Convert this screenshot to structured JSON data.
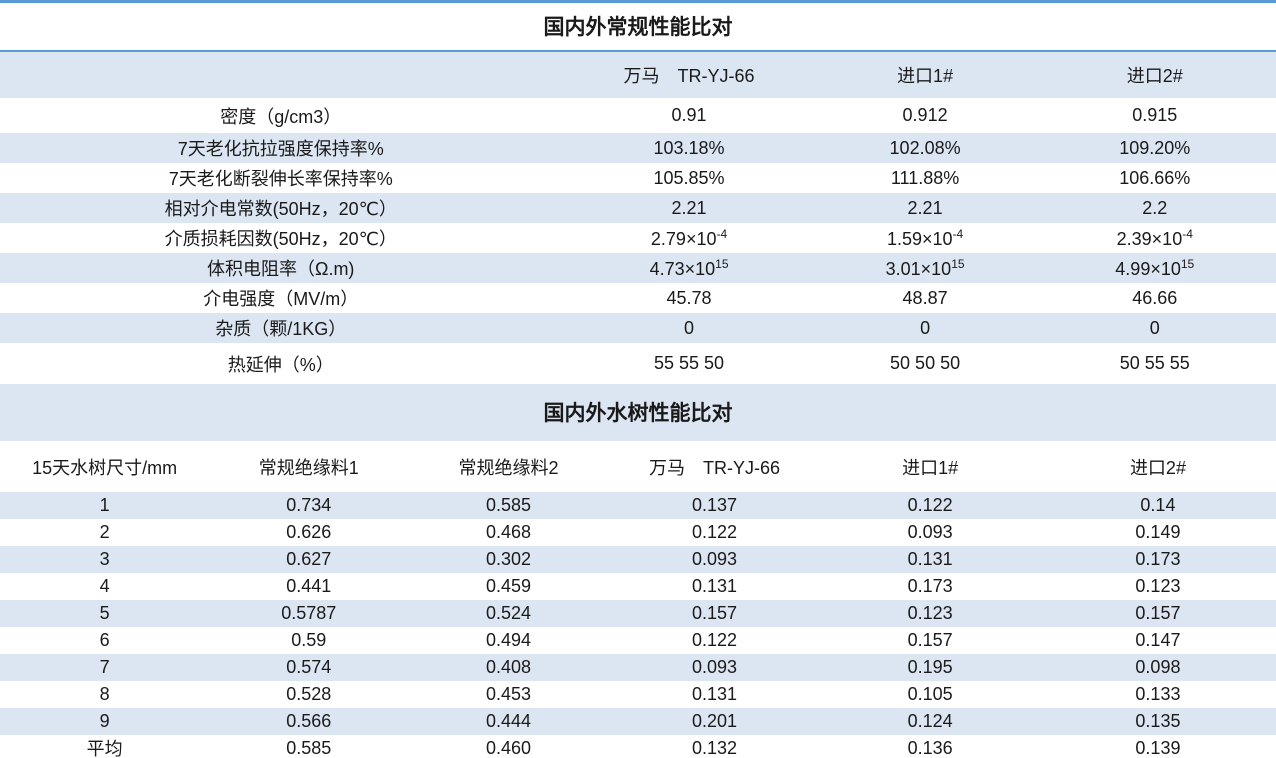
{
  "colors": {
    "stripe": "#dce6f2",
    "border_blue": "#5b9bd5",
    "text": "#1a1a1a",
    "footer_strip": "#ededed"
  },
  "table1": {
    "title": "国内外常规性能比对",
    "header": {
      "empty_label": "",
      "cols": [
        "万马　TR-YJ-66",
        "进口1#",
        "进口2#"
      ]
    },
    "rows": [
      {
        "label": "密度（g/cm3）",
        "values": [
          "0.91",
          "0.912",
          "0.915"
        ]
      },
      {
        "label": "7天老化抗拉强度保持率%",
        "values": [
          "103.18%",
          "102.08%",
          "109.20%"
        ]
      },
      {
        "label": "7天老化断裂伸长率保持率%",
        "values": [
          "105.85%",
          "111.88%",
          "106.66%"
        ]
      },
      {
        "label": "相对介电常数(50Hz，20℃）",
        "values": [
          "2.21",
          "2.21",
          "2.2"
        ]
      },
      {
        "label": "介质损耗因数(50Hz，20℃）",
        "values": [
          "2.79×10^-4",
          "1.59×10^-4",
          "2.39×10^-4"
        ]
      },
      {
        "label": "体积电阻率（Ω.m)",
        "values": [
          "4.73×10^15",
          "3.01×10^15",
          "4.99×10^15"
        ]
      },
      {
        "label": "介电强度（MV/m）",
        "values": [
          "45.78",
          "48.87",
          "46.66"
        ]
      },
      {
        "label": "杂质（颗/1KG）",
        "values": [
          "0",
          "0",
          "0"
        ]
      },
      {
        "label": "热延伸（%）",
        "values": [
          "55 55 50",
          "50 50 50",
          "50 55 55"
        ]
      }
    ]
  },
  "table2": {
    "title": "国内外水树性能比对",
    "header": [
      "15天水树尺寸/mm",
      "常规绝缘料1",
      "常规绝缘料2",
      "万马　TR-YJ-66",
      "进口1#",
      "进口2#"
    ],
    "rows": [
      [
        "1",
        "0.734",
        "0.585",
        "0.137",
        "0.122",
        "0.14"
      ],
      [
        "2",
        "0.626",
        "0.468",
        "0.122",
        "0.093",
        "0.149"
      ],
      [
        "3",
        "0.627",
        "0.302",
        "0.093",
        "0.131",
        "0.173"
      ],
      [
        "4",
        "0.441",
        "0.459",
        "0.131",
        "0.173",
        "0.123"
      ],
      [
        "5",
        "0.5787",
        "0.524",
        "0.157",
        "0.123",
        "0.157"
      ],
      [
        "6",
        "0.59",
        "0.494",
        "0.122",
        "0.157",
        "0.147"
      ],
      [
        "7",
        "0.574",
        "0.408",
        "0.093",
        "0.195",
        "0.098"
      ],
      [
        "8",
        "0.528",
        "0.453",
        "0.131",
        "0.105",
        "0.133"
      ],
      [
        "9",
        "0.566",
        "0.444",
        "0.201",
        "0.124",
        "0.135"
      ],
      [
        "平均",
        "0.585",
        "0.460",
        "0.132",
        "0.136",
        "0.139"
      ]
    ]
  }
}
